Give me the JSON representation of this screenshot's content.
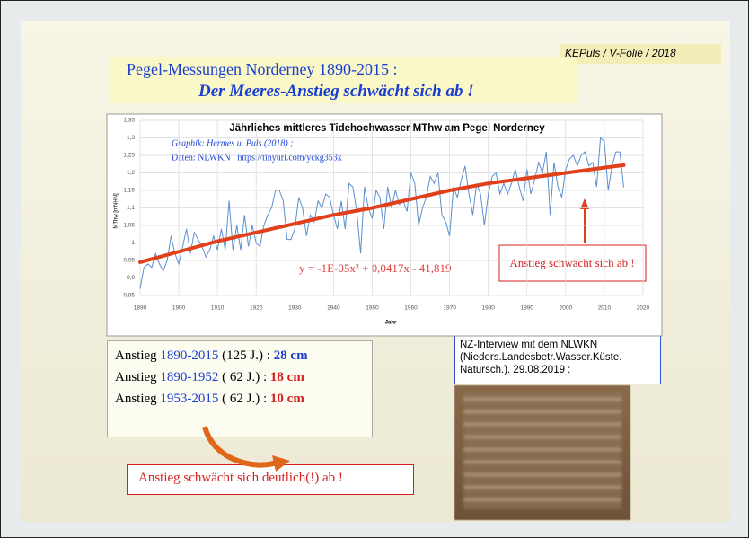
{
  "slide": {
    "credit": "KEPuls / V-Folie / 2018",
    "title": "Pegel-Messungen Norderney 1890-2015 :",
    "subtitle": "Der Meeres-Anstieg schwächt sich ab !",
    "summary": [
      [
        "Anstieg ",
        "1890-2015",
        " (125 J.) : ",
        "28 cm"
      ],
      [
        "Anstieg ",
        "1890-1952",
        " ( 62 J.) : ",
        "18 cm"
      ],
      [
        "Anstieg ",
        "1953-2015",
        " ( 62 J.) : ",
        "10 cm"
      ]
    ],
    "conclusion": "Anstieg schwächt sich deutlich(!) ab !",
    "interview": [
      "NZ-Interview mit dem NLWKN",
      "(Nieders.Landesbetr.Wasser.Küste.",
      "Natursch.). 29.08.2019 :"
    ]
  },
  "chart_data": {
    "type": "line",
    "title": "Jährliches mittleres Tidehochwasser MThw am Pegel Norderney",
    "annotations": [
      "Graphik: Hermes u. Puls (2018) ;",
      "Daten: NLWKN : https://tinyurl.com/yckg353x",
      "y = -1E-05x² + 0,0417x - 41,819",
      "Anstieg schwächt sich ab !"
    ],
    "xlabel": "Jahr",
    "ylabel": "MThw [mNHN]",
    "xlim": [
      1890,
      2020
    ],
    "xticks": [
      1890,
      1900,
      1910,
      1920,
      1930,
      1940,
      1950,
      1960,
      1970,
      1980,
      1990,
      2000,
      2010,
      2020
    ],
    "ylim": [
      0.85,
      1.35
    ],
    "yticks": [
      {
        "value": 0.85,
        "label": "0,85"
      },
      {
        "value": 0.9,
        "label": "0,9"
      },
      {
        "value": 0.95,
        "label": "0,95"
      },
      1,
      {
        "value": 1.05,
        "label": "1,05"
      },
      {
        "value": 1.1,
        "label": "1,1"
      },
      {
        "value": 1.15,
        "label": "1,15"
      },
      {
        "value": 1.2,
        "label": "1,2"
      },
      {
        "value": 1.25,
        "label": "1,25"
      },
      {
        "value": 1.3,
        "label": "1,3"
      },
      {
        "value": 1.35,
        "label": "1,35"
      }
    ],
    "grid": true,
    "series": [
      {
        "color": "#5b8fd0",
        "x": [
          1890,
          1891,
          1892,
          1893,
          1894,
          1895,
          1896,
          1897,
          1898,
          1899,
          1900,
          1901,
          1902,
          1903,
          1904,
          1905,
          1906,
          1907,
          1908,
          1909,
          1910,
          1911,
          1912,
          1913,
          1914,
          1915,
          1916,
          1917,
          1918,
          1919,
          1920,
          1921,
          1922,
          1923,
          1924,
          1925,
          1926,
          1927,
          1928,
          1929,
          1930,
          1931,
          1932,
          1933,
          1934,
          1935,
          1936,
          1937,
          1938,
          1939,
          1940,
          1941,
          1942,
          1943,
          1944,
          1945,
          1946,
          1947,
          1948,
          1949,
          1950,
          1951,
          1952,
          1953,
          1954,
          1955,
          1956,
          1957,
          1958,
          1959,
          1960,
          1961,
          1962,
          1963,
          1964,
          1965,
          1966,
          1967,
          1968,
          1969,
          1970,
          1971,
          1972,
          1973,
          1974,
          1975,
          1976,
          1977,
          1978,
          1979,
          1980,
          1981,
          1982,
          1983,
          1984,
          1985,
          1986,
          1987,
          1988,
          1989,
          1990,
          1991,
          1992,
          1993,
          1994,
          1995,
          1996,
          1997,
          1998,
          1999,
          2000,
          2001,
          2002,
          2003,
          2004,
          2005,
          2006,
          2007,
          2008,
          2009,
          2010,
          2011,
          2012,
          2013,
          2014,
          2015
        ],
        "values": [
          0.87,
          0.93,
          0.94,
          0.93,
          0.97,
          0.94,
          0.92,
          0.95,
          1.02,
          0.97,
          0.94,
          0.99,
          1.04,
          0.97,
          1.03,
          1.01,
          0.99,
          0.96,
          0.98,
          1.02,
          0.98,
          1.04,
          0.98,
          1.12,
          0.98,
          1.05,
          0.98,
          1.08,
          0.99,
          1.05,
          1.0,
          0.99,
          1.05,
          1.08,
          1.1,
          1.15,
          1.15,
          1.12,
          1.01,
          1.01,
          1.04,
          1.13,
          1.1,
          1.02,
          1.08,
          1.06,
          1.12,
          1.1,
          1.14,
          1.13,
          1.08,
          1.04,
          1.12,
          1.04,
          1.17,
          1.16,
          1.09,
          0.97,
          1.16,
          1.1,
          1.07,
          1.15,
          1.13,
          1.04,
          1.16,
          1.1,
          1.15,
          1.11,
          1.12,
          1.09,
          1.2,
          1.17,
          1.05,
          1.1,
          1.13,
          1.19,
          1.17,
          1.2,
          1.08,
          1.06,
          1.02,
          1.16,
          1.13,
          1.18,
          1.22,
          1.14,
          1.08,
          1.17,
          1.14,
          1.05,
          1.14,
          1.19,
          1.2,
          1.14,
          1.17,
          1.14,
          1.17,
          1.21,
          1.16,
          1.12,
          1.21,
          1.14,
          1.18,
          1.23,
          1.2,
          1.26,
          1.08,
          1.23,
          1.16,
          1.13,
          1.21,
          1.24,
          1.25,
          1.22,
          1.25,
          1.26,
          1.22,
          1.23,
          1.16,
          1.3,
          1.29,
          1.15,
          1.22,
          1.26,
          1.26,
          1.16
        ]
      },
      {
        "color": "#e0401a",
        "x": [
          1890,
          1900,
          1910,
          1920,
          1930,
          1940,
          1950,
          1960,
          1970,
          1980,
          1990,
          2000,
          2010,
          2015
        ],
        "values": [
          0.945,
          0.975,
          1.005,
          1.03,
          1.055,
          1.08,
          1.1,
          1.125,
          1.15,
          1.17,
          1.185,
          1.2,
          1.215,
          1.222
        ]
      }
    ]
  }
}
